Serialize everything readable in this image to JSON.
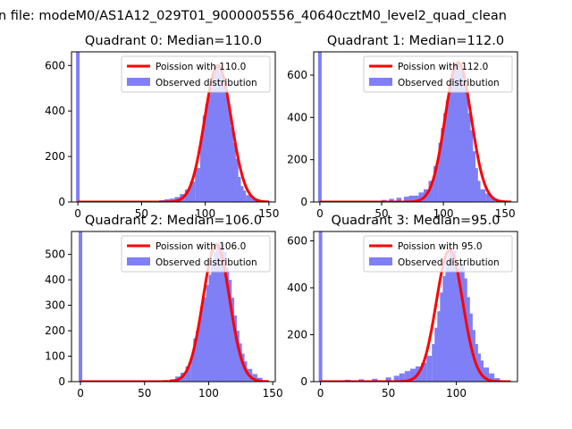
{
  "suptitle": "n file: modeM0/AS1A12_029T01_9000005556_40640cztM0_level2_quad_clean",
  "colors": {
    "hist": "#7f7ff6",
    "curve": "#ff0000",
    "axis": "#000000"
  },
  "chart_data": [
    {
      "type": "bar",
      "title": "Quadrant 0: Median=110.0",
      "median": 110.0,
      "xlim": [
        -5,
        155
      ],
      "ylim": [
        0,
        660
      ],
      "xticks": [
        0,
        50,
        100,
        150
      ],
      "yticks": [
        0,
        200,
        400,
        600
      ],
      "legend": {
        "placement": "top-right",
        "curve_label": "Poission with 110.0",
        "hist_label": "Observed distribution"
      },
      "zero_bin_count": 660,
      "series": [
        {
          "name": "Observed distribution",
          "values": [
            [
              62,
              5
            ],
            [
              66,
              8
            ],
            [
              70,
              12
            ],
            [
              74,
              15
            ],
            [
              78,
              22
            ],
            [
              82,
              35
            ],
            [
              86,
              55
            ],
            [
              90,
              90
            ],
            [
              94,
              150
            ],
            [
              98,
              280
            ],
            [
              100,
              380
            ],
            [
              102,
              430
            ],
            [
              104,
              470
            ],
            [
              106,
              500
            ],
            [
              108,
              590
            ],
            [
              110,
              600
            ],
            [
              112,
              570
            ],
            [
              114,
              520
            ],
            [
              116,
              470
            ],
            [
              118,
              420
            ],
            [
              120,
              330
            ],
            [
              122,
              260
            ],
            [
              124,
              190
            ],
            [
              126,
              110
            ],
            [
              128,
              70
            ],
            [
              130,
              50
            ],
            [
              134,
              30
            ],
            [
              138,
              15
            ],
            [
              142,
              8
            ],
            [
              146,
              5
            ],
            [
              150,
              3
            ]
          ]
        }
      ]
    },
    {
      "type": "bar",
      "title": "Quadrant 1: Median=112.0",
      "median": 112.0,
      "xlim": [
        -5,
        160
      ],
      "ylim": [
        0,
        710
      ],
      "xticks": [
        0,
        50,
        100,
        150
      ],
      "yticks": [
        0,
        200,
        400,
        600
      ],
      "legend": {
        "placement": "top-right",
        "curve_label": "Poission with 112.0",
        "hist_label": "Observed distribution"
      },
      "zero_bin_count": 710,
      "series": [
        {
          "name": "Observed distribution",
          "values": [
            [
              52,
              10
            ],
            [
              58,
              15
            ],
            [
              64,
              20
            ],
            [
              70,
              25
            ],
            [
              74,
              30
            ],
            [
              78,
              30
            ],
            [
              82,
              45
            ],
            [
              86,
              60
            ],
            [
              90,
              100
            ],
            [
              94,
              170
            ],
            [
              98,
              280
            ],
            [
              100,
              350
            ],
            [
              102,
              420
            ],
            [
              104,
              480
            ],
            [
              106,
              570
            ],
            [
              108,
              610
            ],
            [
              110,
              660
            ],
            [
              112,
              660
            ],
            [
              114,
              620
            ],
            [
              116,
              560
            ],
            [
              118,
              520
            ],
            [
              120,
              420
            ],
            [
              122,
              340
            ],
            [
              124,
              240
            ],
            [
              126,
              160
            ],
            [
              128,
              100
            ],
            [
              132,
              60
            ],
            [
              136,
              40
            ],
            [
              140,
              20
            ],
            [
              146,
              10
            ],
            [
              152,
              5
            ]
          ]
        }
      ]
    },
    {
      "type": "bar",
      "title": "Quadrant 2: Median=106.0",
      "median": 106.0,
      "xlim": [
        -7,
        152
      ],
      "ylim": [
        0,
        590
      ],
      "xticks": [
        0,
        50,
        100,
        150
      ],
      "yticks": [
        0,
        100,
        200,
        300,
        400,
        500
      ],
      "legend": {
        "placement": "top-right",
        "curve_label": "Poission with 106.0",
        "hist_label": "Observed distribution"
      },
      "zero_bin_count": 590,
      "series": [
        {
          "name": "Observed distribution",
          "values": [
            [
              60,
              4
            ],
            [
              66,
              6
            ],
            [
              72,
              10
            ],
            [
              76,
              20
            ],
            [
              80,
              35
            ],
            [
              84,
              60
            ],
            [
              88,
              100
            ],
            [
              90,
              170
            ],
            [
              92,
              200
            ],
            [
              94,
              250
            ],
            [
              96,
              300
            ],
            [
              98,
              330
            ],
            [
              100,
              380
            ],
            [
              102,
              420
            ],
            [
              104,
              460
            ],
            [
              106,
              510
            ],
            [
              108,
              540
            ],
            [
              110,
              540
            ],
            [
              112,
              510
            ],
            [
              114,
              450
            ],
            [
              116,
              400
            ],
            [
              118,
              330
            ],
            [
              120,
              260
            ],
            [
              122,
              200
            ],
            [
              124,
              150
            ],
            [
              126,
              110
            ],
            [
              128,
              80
            ],
            [
              132,
              50
            ],
            [
              136,
              30
            ],
            [
              140,
              15
            ],
            [
              144,
              5
            ]
          ]
        }
      ]
    },
    {
      "type": "bar",
      "title": "Quadrant 3: Median=95.0",
      "median": 95.0,
      "xlim": [
        -5,
        145
      ],
      "ylim": [
        0,
        640
      ],
      "xticks": [
        0,
        50,
        100
      ],
      "yticks": [
        0,
        200,
        400,
        600
      ],
      "legend": {
        "placement": "top-right",
        "curve_label": "Poission with 95.0",
        "hist_label": "Observed distribution"
      },
      "zero_bin_count": 640,
      "series": [
        {
          "name": "Observed distribution",
          "values": [
            [
              10,
              5
            ],
            [
              20,
              8
            ],
            [
              30,
              10
            ],
            [
              40,
              12
            ],
            [
              50,
              18
            ],
            [
              56,
              25
            ],
            [
              60,
              35
            ],
            [
              64,
              45
            ],
            [
              68,
              55
            ],
            [
              72,
              65
            ],
            [
              76,
              80
            ],
            [
              80,
              110
            ],
            [
              84,
              160
            ],
            [
              86,
              230
            ],
            [
              88,
              300
            ],
            [
              90,
              380
            ],
            [
              92,
              450
            ],
            [
              94,
              500
            ],
            [
              96,
              550
            ],
            [
              98,
              560
            ],
            [
              100,
              420
            ],
            [
              102,
              480
            ],
            [
              104,
              500
            ],
            [
              106,
              440
            ],
            [
              108,
              360
            ],
            [
              110,
              290
            ],
            [
              112,
              220
            ],
            [
              114,
              160
            ],
            [
              116,
              120
            ],
            [
              118,
              90
            ],
            [
              122,
              60
            ],
            [
              126,
              35
            ],
            [
              130,
              15
            ],
            [
              134,
              5
            ]
          ]
        }
      ]
    }
  ]
}
